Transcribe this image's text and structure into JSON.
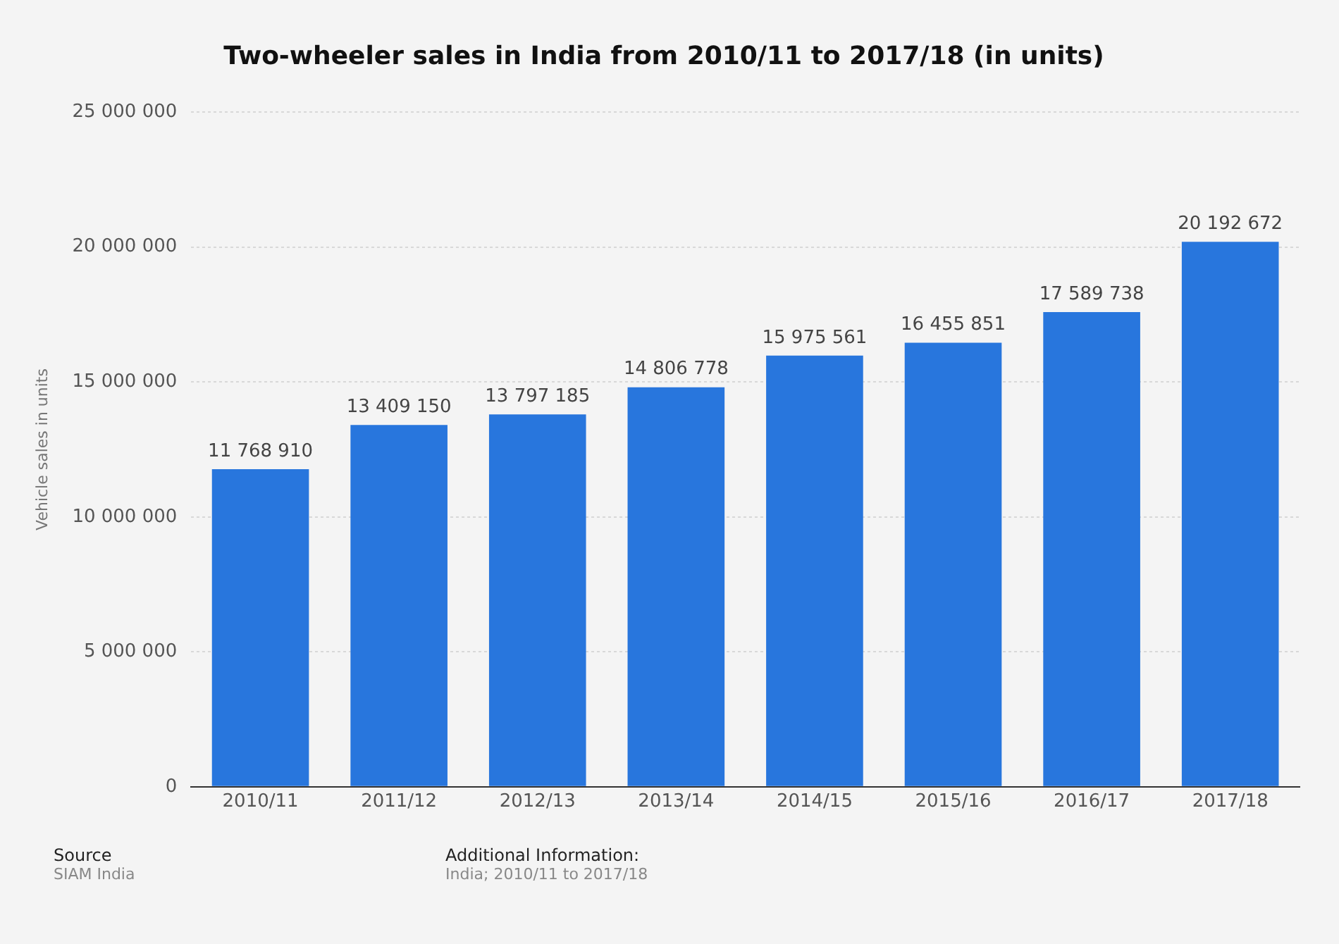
{
  "chart_data": {
    "type": "bar",
    "title": "Two-wheeler sales in India from 2010/11 to 2017/18 (in units)",
    "ylabel": "Vehicle sales in units",
    "categories": [
      "2010/11",
      "2011/12",
      "2012/13",
      "2013/14",
      "2014/15",
      "2015/16",
      "2016/17",
      "2017/18"
    ],
    "values": [
      11768910,
      13409150,
      13797185,
      14806778,
      15975561,
      16455851,
      17589738,
      20192672
    ],
    "value_labels": [
      "11 768 910",
      "13 409 150",
      "13 797 185",
      "14 806 778",
      "15 975 561",
      "16 455 851",
      "17 589 738",
      "20 192 672"
    ],
    "color": "#2876dd",
    "ylim": [
      0,
      25000000
    ],
    "yticks": [
      0,
      {
        "value": 5000000,
        "label": "5 000 000"
      },
      {
        "value": 10000000,
        "label": "10 000 000"
      },
      {
        "value": 15000000,
        "label": "15 000 000"
      },
      {
        "value": 20000000,
        "label": "20 000 000"
      },
      {
        "value": 25000000,
        "label": "25 000 000"
      }
    ],
    "grid": "y",
    "annotations": [
      "Source\nSIAM India",
      "Additional Information:\nIndia; 2010/11 to 2017/18"
    ]
  }
}
